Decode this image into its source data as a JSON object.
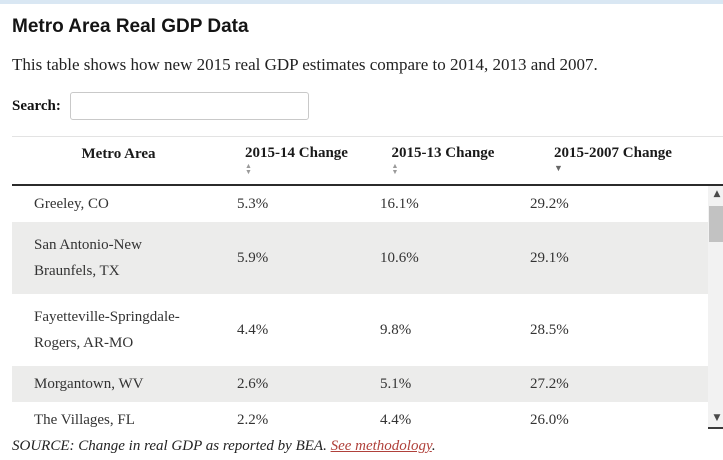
{
  "page": {
    "title": "Metro Area Real GDP Data",
    "subtitle": "This table shows how new 2015 real GDP estimates compare to 2014, 2013 and 2007.",
    "search": {
      "label": "Search:",
      "value": ""
    },
    "source": {
      "prefix": "SOURCE: Change in real GDP as reported by BEA. ",
      "link_text": "See methodology",
      "suffix": "."
    }
  },
  "table": {
    "columns": [
      {
        "label": "Metro Area",
        "sort": "none"
      },
      {
        "label": "2015-14 Change",
        "sort": "unsorted-both-arrows"
      },
      {
        "label": "2015-13 Change",
        "sort": "unsorted-both-arrows"
      },
      {
        "label": "2015-2007 Change",
        "sort": "sorted-descending"
      }
    ],
    "rows": [
      {
        "metro": "Greeley, CO",
        "change_2015_14": "5.3%",
        "change_2015_13": "16.1%",
        "change_2015_2007": "29.2%"
      },
      {
        "metro": "San Antonio-New Braunfels, TX",
        "change_2015_14": "5.9%",
        "change_2015_13": "10.6%",
        "change_2015_2007": "29.1%"
      },
      {
        "metro": "Fayetteville-Springdale-Rogers, AR-MO",
        "change_2015_14": "4.4%",
        "change_2015_13": "9.8%",
        "change_2015_2007": "28.5%"
      },
      {
        "metro": "Morgantown, WV",
        "change_2015_14": "2.6%",
        "change_2015_13": "5.1%",
        "change_2015_2007": "27.2%"
      },
      {
        "metro": "The Villages, FL",
        "change_2015_14": "2.2%",
        "change_2015_13": "4.4%",
        "change_2015_2007": "26.0%"
      }
    ],
    "note": "last visible row is clipped by scroll viewport"
  },
  "icons": {
    "sort_up": "▲",
    "sort_down": "▼",
    "scroll_up": "▲",
    "scroll_down": "▼"
  },
  "colors": {
    "accent_link": "#b0413b",
    "stripe": "#ececeb",
    "header_border": "#2b2b2b",
    "top_strip": "#d9e7f3"
  }
}
